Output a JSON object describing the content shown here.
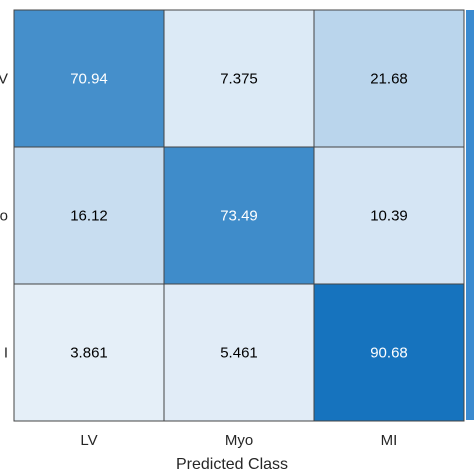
{
  "chart_data": {
    "type": "heatmap",
    "title": "",
    "xlabel": "Predicted Class",
    "ylabel": "",
    "x_categories": [
      "LV",
      "Myo",
      "MI"
    ],
    "y_tick_labels_visible": [
      "V",
      "o",
      "I"
    ],
    "values": [
      [
        70.94,
        7.375,
        21.68
      ],
      [
        16.12,
        73.49,
        10.39
      ],
      [
        3.861,
        5.461,
        90.68
      ]
    ],
    "value_labels": [
      [
        "70.94",
        "7.375",
        "21.68"
      ],
      [
        "16.12",
        "73.49",
        "10.39"
      ],
      [
        "3.861",
        "5.461",
        "90.68"
      ]
    ],
    "color_range": [
      0,
      100
    ],
    "colormap": {
      "low": "#eef4fb",
      "high": "#0066b8"
    },
    "light_text_color": "#ffffff",
    "dark_text_color": "#000000",
    "cell_border_color": "#444444",
    "colorbar_edge_color": "#3a8ad0"
  }
}
